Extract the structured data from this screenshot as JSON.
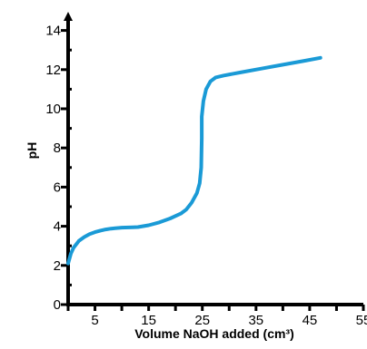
{
  "chart_data": {
    "type": "line",
    "title": "",
    "xlabel": "Volume NaOH added (cm³)",
    "ylabel": "pH",
    "xlim": [
      0,
      55
    ],
    "ylim": [
      0,
      15
    ],
    "x_ticks": [
      5,
      15,
      25,
      35,
      45,
      55
    ],
    "x_minor_ticks": [
      0,
      5,
      10,
      15,
      20,
      25,
      30,
      35,
      40,
      45,
      50,
      55
    ],
    "y_ticks": [
      0,
      2,
      4,
      6,
      8,
      10,
      12,
      14
    ],
    "y_minor_ticks": [
      1,
      3,
      5,
      7,
      9,
      11,
      13
    ],
    "grid": false,
    "legend": "none",
    "series": [
      {
        "color": "#1a9ad6",
        "points": [
          [
            0,
            2.1
          ],
          [
            0.5,
            2.6
          ],
          [
            1,
            2.9
          ],
          [
            2,
            3.25
          ],
          [
            3,
            3.45
          ],
          [
            4,
            3.6
          ],
          [
            5,
            3.7
          ],
          [
            6,
            3.78
          ],
          [
            7,
            3.84
          ],
          [
            8,
            3.88
          ],
          [
            10,
            3.93
          ],
          [
            12,
            3.95
          ],
          [
            13,
            3.96
          ],
          [
            15,
            4.05
          ],
          [
            17,
            4.2
          ],
          [
            19,
            4.4
          ],
          [
            21,
            4.65
          ],
          [
            22,
            4.85
          ],
          [
            23,
            5.2
          ],
          [
            24,
            5.7
          ],
          [
            24.5,
            6.2
          ],
          [
            24.8,
            7.0
          ],
          [
            24.9,
            8.5
          ],
          [
            24.9,
            9.6
          ],
          [
            25.2,
            10.4
          ],
          [
            25.7,
            11.0
          ],
          [
            26.5,
            11.4
          ],
          [
            27.5,
            11.6
          ],
          [
            29,
            11.7
          ],
          [
            32,
            11.85
          ],
          [
            36,
            12.05
          ],
          [
            40,
            12.25
          ],
          [
            44,
            12.45
          ],
          [
            47,
            12.6
          ]
        ]
      }
    ]
  }
}
